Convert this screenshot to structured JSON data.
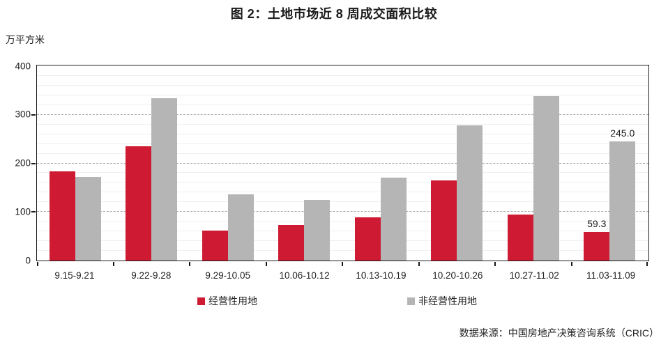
{
  "title": "图 2：土地市场近 8 周成交面积比较",
  "unit_label": "万平方米",
  "source": "数据来源：中国房地产决策咨询系统（CRIC）",
  "colors": {
    "series_red": "#CE1A32",
    "series_gray": "#B5B5B5",
    "axis": "#1a1a1a",
    "major_grid": "#aaaaaa",
    "minor_grid": "#efefef"
  },
  "chart_data": {
    "type": "bar",
    "title": "图 2：土地市场近 8 周成交面积比较",
    "ylabel": "万平方米",
    "xlabel": "",
    "categories": [
      "9.15-9.21",
      "9.22-9.28",
      "9.29-10.05",
      "10.06-10.12",
      "10.13-10.19",
      "10.20-10.26",
      "10.27-11.02",
      "11.03-11.09"
    ],
    "series": [
      {
        "name": "经营性用地",
        "color": "#CE1A32",
        "values": [
          184,
          235,
          61,
          73,
          89,
          165,
          94,
          59.3
        ]
      },
      {
        "name": "非经营性用地",
        "color": "#B5B5B5",
        "values": [
          172,
          334,
          136,
          125,
          171,
          278,
          339,
          245.0
        ]
      }
    ],
    "ylim": [
      0,
      400
    ],
    "yticks": [
      0,
      100,
      200,
      300,
      400
    ],
    "minor_grid_step": 20,
    "grid": "horizontal",
    "legend_position": "bottom",
    "data_labels": [
      {
        "category_index": 7,
        "series_index": 0,
        "text": "59.3"
      },
      {
        "category_index": 7,
        "series_index": 1,
        "text": "245.0"
      }
    ]
  }
}
